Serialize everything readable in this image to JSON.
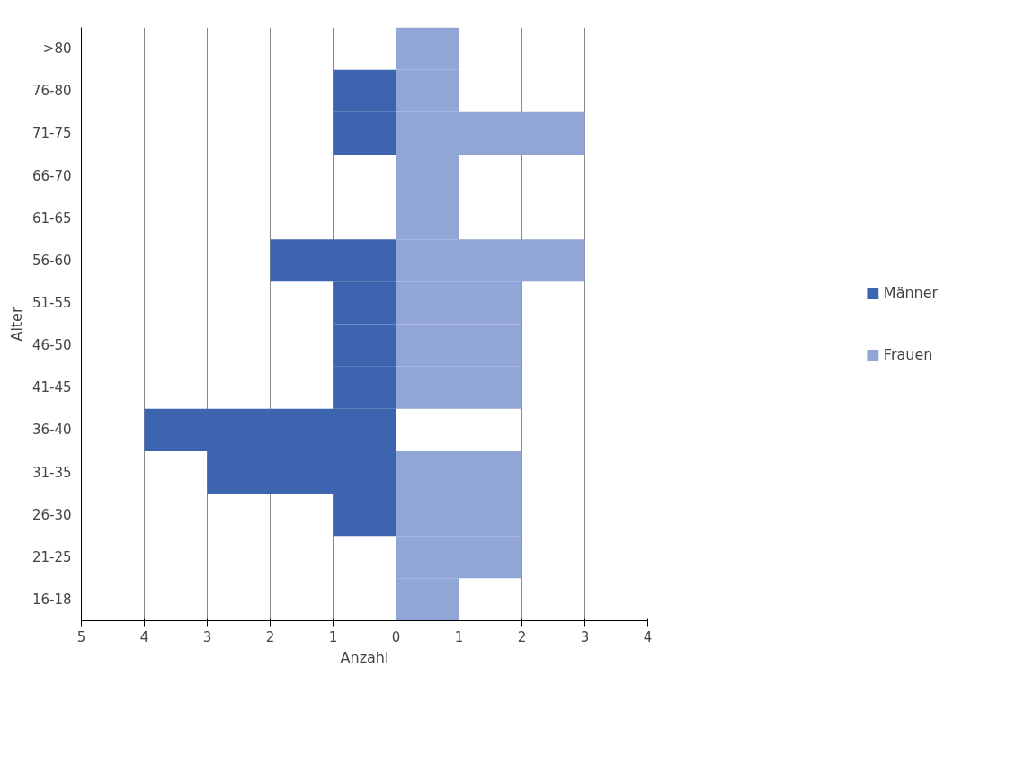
{
  "chart_data": {
    "type": "bar",
    "orientation": "horizontal",
    "xlabel": "Anzahl",
    "ylabel": "Alter",
    "categories": [
      ">80",
      "76-80",
      "71-75",
      "66-70",
      "61-65",
      "56-60",
      "51-55",
      "46-50",
      "41-45",
      "36-40",
      "31-35",
      "26-30",
      "21-25",
      "16-18"
    ],
    "series": [
      {
        "name": "Männer",
        "color": "#3d64ae",
        "values": [
          0,
          -1,
          -1,
          0,
          0,
          -2,
          -1,
          -1,
          -1,
          -4,
          -3,
          -1,
          0,
          0
        ]
      },
      {
        "name": "Frauen",
        "color": "#91a6d6",
        "values": [
          1,
          1,
          3,
          1,
          1,
          3,
          2,
          2,
          2,
          0,
          2,
          2,
          2,
          1
        ]
      }
    ],
    "xlim": [
      -5,
      4
    ],
    "xticks": [
      {
        "value": -5,
        "label": "5"
      },
      {
        "value": -4,
        "label": "4"
      },
      {
        "value": -3,
        "label": "3"
      },
      {
        "value": -2,
        "label": "2"
      },
      {
        "value": -1,
        "label": "1"
      },
      0,
      1,
      2,
      3,
      4
    ],
    "grid": "x",
    "legend": "right",
    "stacked": true
  }
}
